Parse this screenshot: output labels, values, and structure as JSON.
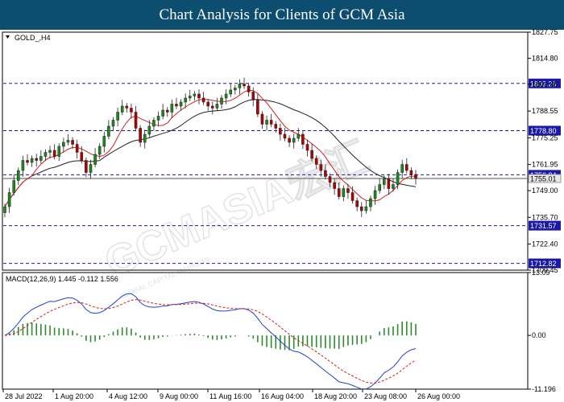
{
  "header": {
    "title": "Chart Analysis for Clients of GCM Asia"
  },
  "watermark": {
    "text": "GCMASIA宏汇",
    "subtext": "GLOBAL CAPITAL MARKETS"
  },
  "colors": {
    "title_bg": "#0c4d70",
    "bull": "#1a8a1a",
    "bear": "#b30000",
    "ma_fast": "#d42020",
    "ma_slow": "#222222",
    "support_resistance": "#1a1aa6",
    "macd_line": "#1f3fd8",
    "signal_line": "#d42020",
    "histogram": "#2e8b2e"
  },
  "chart_data": [
    {
      "type": "candlestick",
      "symbol_label": "GOLD_,H4",
      "ylim": [
        1709.45,
        1827.75
      ],
      "price_ticks": [
        "1827.75",
        "1814.80",
        "1801.85",
        "1788.55",
        "1775.25",
        "1761.95",
        "1749.00",
        "1735.70",
        "1722.40",
        "1709.45"
      ],
      "levels": [
        {
          "value": 1802.26,
          "label": "1802.26"
        },
        {
          "value": 1778.8,
          "label": "1778.80"
        },
        {
          "value": 1756.84,
          "label": "1756.84"
        },
        {
          "value": 1731.57,
          "label": "1731.57"
        },
        {
          "value": 1712.82,
          "label": "1712.82"
        }
      ],
      "current_price": {
        "value": 1755.01,
        "label": "1755.01"
      },
      "x_labels": [
        "28 Jul 2022",
        "1 Aug 20:00",
        "4 Aug 12:00",
        "9 Aug 00:00",
        "11 Aug 16:00",
        "16 Aug 04:00",
        "18 Aug 20:00",
        "23 Aug 08:00",
        "26 Aug 00:00"
      ],
      "close": [
        1741,
        1748,
        1754,
        1759,
        1764,
        1763,
        1765,
        1764,
        1766,
        1768,
        1769,
        1766,
        1771,
        1773,
        1774,
        1772,
        1768,
        1764,
        1758,
        1762,
        1767,
        1771,
        1776,
        1781,
        1784,
        1788,
        1791,
        1790,
        1788,
        1780,
        1773,
        1777,
        1781,
        1784,
        1786,
        1789,
        1788,
        1792,
        1791,
        1793,
        1795,
        1796,
        1797,
        1795,
        1793,
        1791,
        1790,
        1792,
        1795,
        1797,
        1799,
        1800,
        1802,
        1801,
        1798,
        1794,
        1787,
        1782,
        1784,
        1782,
        1780,
        1777,
        1775,
        1773,
        1775,
        1777,
        1772,
        1769,
        1765,
        1762,
        1759,
        1756,
        1753,
        1750,
        1746,
        1750,
        1748,
        1744,
        1741,
        1739,
        1741,
        1745,
        1749,
        1752,
        1755,
        1750,
        1752,
        1758,
        1762,
        1759,
        1757,
        1755
      ]
    },
    {
      "type": "macd",
      "label": "MACD(12,26,9) 1.445 -0.112 1.556",
      "ylim": [
        -11.196,
        13.09
      ],
      "y_ticks": [
        "13.09",
        "0.00",
        "-11.196"
      ]
    }
  ]
}
